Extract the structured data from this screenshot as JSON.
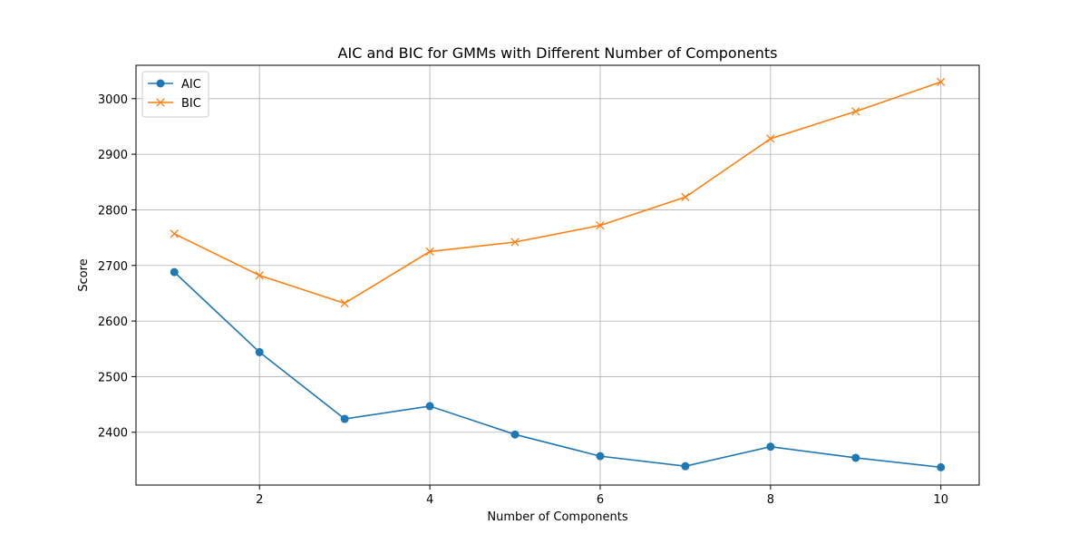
{
  "chart_data": {
    "type": "line",
    "title": "AIC and BIC for GMMs with Different Number of Components",
    "xlabel": "Number of Components",
    "ylabel": "Score",
    "x": [
      1,
      2,
      3,
      4,
      5,
      6,
      7,
      8,
      9,
      10
    ],
    "xlim": [
      0.55,
      10.45
    ],
    "ylim": [
      2305,
      3060
    ],
    "xticks": [
      2,
      4,
      6,
      8,
      10
    ],
    "yticks": [
      2400,
      2500,
      2600,
      2700,
      2800,
      2900,
      3000
    ],
    "grid": true,
    "legend_position": "top-left",
    "series": [
      {
        "name": "AIC",
        "color": "#1f77b4",
        "marker": "circle",
        "values": [
          2688,
          2544,
          2424,
          2447,
          2396,
          2357,
          2339,
          2374,
          2354,
          2337
        ]
      },
      {
        "name": "BIC",
        "color": "#ff7f0e",
        "marker": "x",
        "values": [
          2757,
          2682,
          2632,
          2725,
          2742,
          2772,
          2823,
          2928,
          2977,
          3030
        ]
      }
    ]
  }
}
